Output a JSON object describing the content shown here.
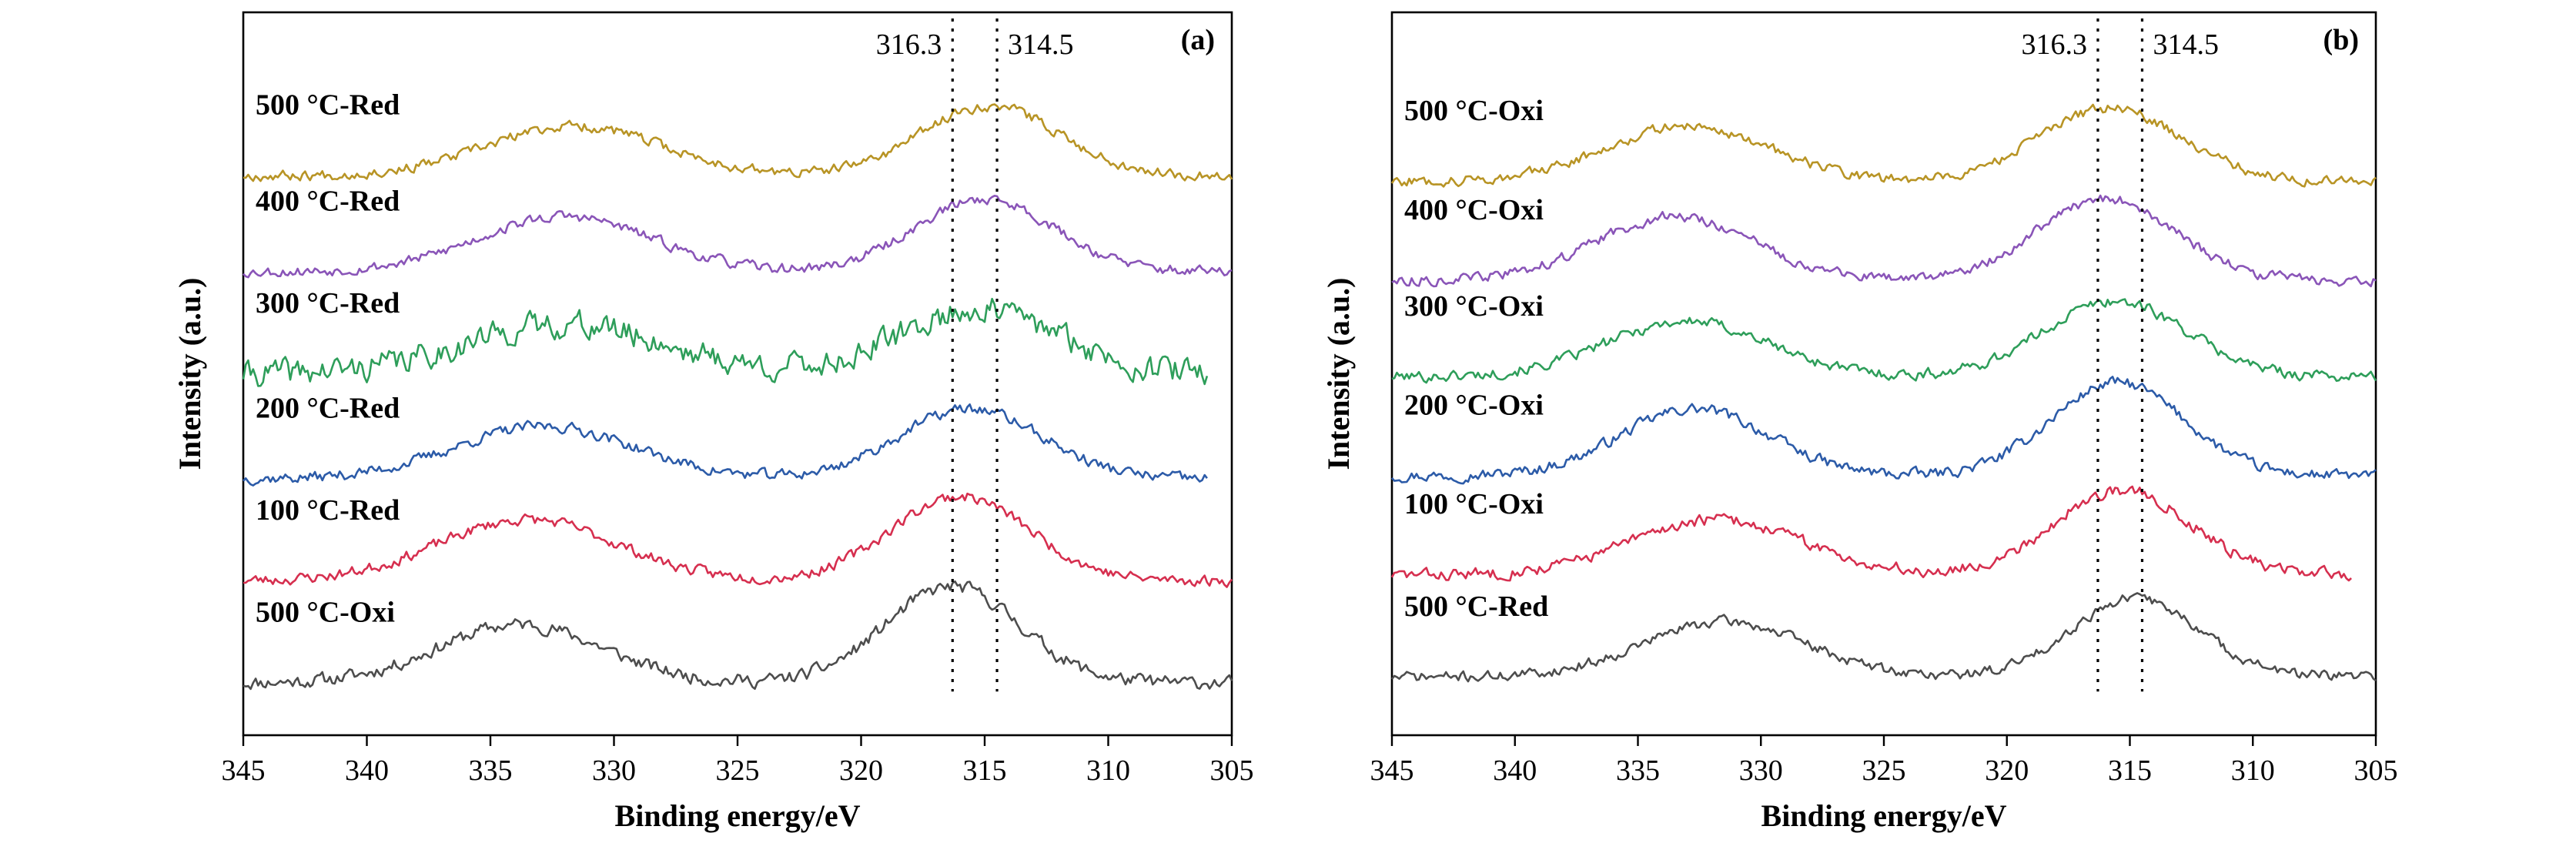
{
  "chart_data": [
    {
      "type": "line",
      "panel_label": "(a)",
      "xlabel": "Binding energy/eV",
      "ylabel": "Intensity (a.u.)",
      "xlim": [
        345,
        305
      ],
      "x_ticks": [
        345,
        340,
        335,
        330,
        325,
        320,
        315,
        310,
        305
      ],
      "y_ticks": false,
      "reference_lines": [
        {
          "x": 316.3,
          "label": "316.3"
        },
        {
          "x": 314.5,
          "label": "314.5"
        }
      ],
      "series": [
        {
          "label": "500 °C-Oxi",
          "color": "#4d4d4d",
          "x_start": 345,
          "x_end": 305,
          "offset": 0.5,
          "peaks": [
            {
              "center": 333.8,
              "height": 1.0,
              "width": 3.3
            },
            {
              "center": 316.3,
              "height": 1.65,
              "width": 2.7
            }
          ],
          "noise": 0.18,
          "seed": 11
        },
        {
          "label": "100 °C-Red",
          "color": "#d62f4f",
          "x_start": 345,
          "x_end": 305,
          "offset": 2.25,
          "peaks": [
            {
              "center": 333.5,
              "height": 1.05,
              "width": 3.6
            },
            {
              "center": 316.0,
              "height": 1.45,
              "width": 2.8
            }
          ],
          "noise": 0.15,
          "seed": 23
        },
        {
          "label": "200 °C-Red",
          "color": "#2c5ba8",
          "x_start": 345,
          "x_end": 306,
          "offset": 4.0,
          "peaks": [
            {
              "center": 332.8,
              "height": 0.9,
              "width": 3.6
            },
            {
              "center": 315.6,
              "height": 1.2,
              "width": 2.9
            }
          ],
          "noise": 0.15,
          "seed": 37
        },
        {
          "label": "300 °C-Red",
          "color": "#2e9e5a",
          "x_start": 345,
          "x_end": 306,
          "offset": 5.8,
          "peaks": [
            {
              "center": 332.0,
              "height": 0.85,
              "width": 4.0
            },
            {
              "center": 315.2,
              "height": 1.1,
              "width": 3.2
            }
          ],
          "noise": 0.36,
          "seed": 41
        },
        {
          "label": "400 °C-Red",
          "color": "#8a55b8",
          "x_start": 345,
          "x_end": 305,
          "offset": 7.55,
          "peaks": [
            {
              "center": 332.0,
              "height": 0.95,
              "width": 3.5
            },
            {
              "center": 315.0,
              "height": 1.25,
              "width": 2.8
            }
          ],
          "noise": 0.14,
          "seed": 53
        },
        {
          "label": "500 °C-Red",
          "color": "#b89425",
          "x_start": 345,
          "x_end": 305,
          "offset": 9.2,
          "peaks": [
            {
              "center": 331.6,
              "height": 0.85,
              "width": 3.5
            },
            {
              "center": 314.8,
              "height": 1.2,
              "width": 2.8
            }
          ],
          "noise": 0.14,
          "seed": 67
        }
      ]
    },
    {
      "type": "line",
      "panel_label": "(b)",
      "xlabel": "Binding energy/eV",
      "ylabel": "Intensity (a.u.)",
      "xlim": [
        345,
        305
      ],
      "x_ticks": [
        345,
        340,
        335,
        330,
        325,
        320,
        315,
        310,
        305
      ],
      "y_ticks": false,
      "reference_lines": [
        {
          "x": 316.3,
          "label": "316.3"
        },
        {
          "x": 314.5,
          "label": "314.5"
        }
      ],
      "series": [
        {
          "label": "500 °C-Red",
          "color": "#4d4d4d",
          "x_start": 345,
          "x_end": 305,
          "offset": 0.6,
          "peaks": [
            {
              "center": 331.5,
              "height": 0.95,
              "width": 3.3
            },
            {
              "center": 314.8,
              "height": 1.35,
              "width": 2.6
            }
          ],
          "noise": 0.14,
          "seed": 71
        },
        {
          "label": "100 °C-Oxi",
          "color": "#d62f4f",
          "x_start": 345,
          "x_end": 306,
          "offset": 2.35,
          "peaks": [
            {
              "center": 331.8,
              "height": 0.95,
              "width": 3.5
            },
            {
              "center": 315.3,
              "height": 1.45,
              "width": 2.8
            }
          ],
          "noise": 0.16,
          "seed": 83
        },
        {
          "label": "200 °C-Oxi",
          "color": "#2c5ba8",
          "x_start": 345,
          "x_end": 305,
          "offset": 4.05,
          "peaks": [
            {
              "center": 332.7,
              "height": 1.15,
              "width": 3.0
            },
            {
              "center": 315.5,
              "height": 1.6,
              "width": 2.7
            }
          ],
          "noise": 0.15,
          "seed": 97
        },
        {
          "label": "300 °C-Oxi",
          "color": "#2e9e5a",
          "x_start": 345,
          "x_end": 305,
          "offset": 5.75,
          "peaks": [
            {
              "center": 333.0,
              "height": 0.95,
              "width": 3.3
            },
            {
              "center": 315.6,
              "height": 1.3,
              "width": 2.9
            }
          ],
          "noise": 0.15,
          "seed": 101
        },
        {
          "label": "400 °C-Oxi",
          "color": "#8a55b8",
          "x_start": 345,
          "x_end": 305,
          "offset": 7.4,
          "peaks": [
            {
              "center": 333.5,
              "height": 1.1,
              "width": 3.2
            },
            {
              "center": 316.0,
              "height": 1.4,
              "width": 2.8
            }
          ],
          "noise": 0.14,
          "seed": 113
        },
        {
          "label": "500 °C-Oxi",
          "color": "#b89425",
          "x_start": 345,
          "x_end": 305,
          "offset": 9.1,
          "peaks": [
            {
              "center": 333.0,
              "height": 0.95,
              "width": 3.3
            },
            {
              "center": 315.8,
              "height": 1.25,
              "width": 2.9
            }
          ],
          "noise": 0.14,
          "seed": 127
        }
      ]
    }
  ]
}
